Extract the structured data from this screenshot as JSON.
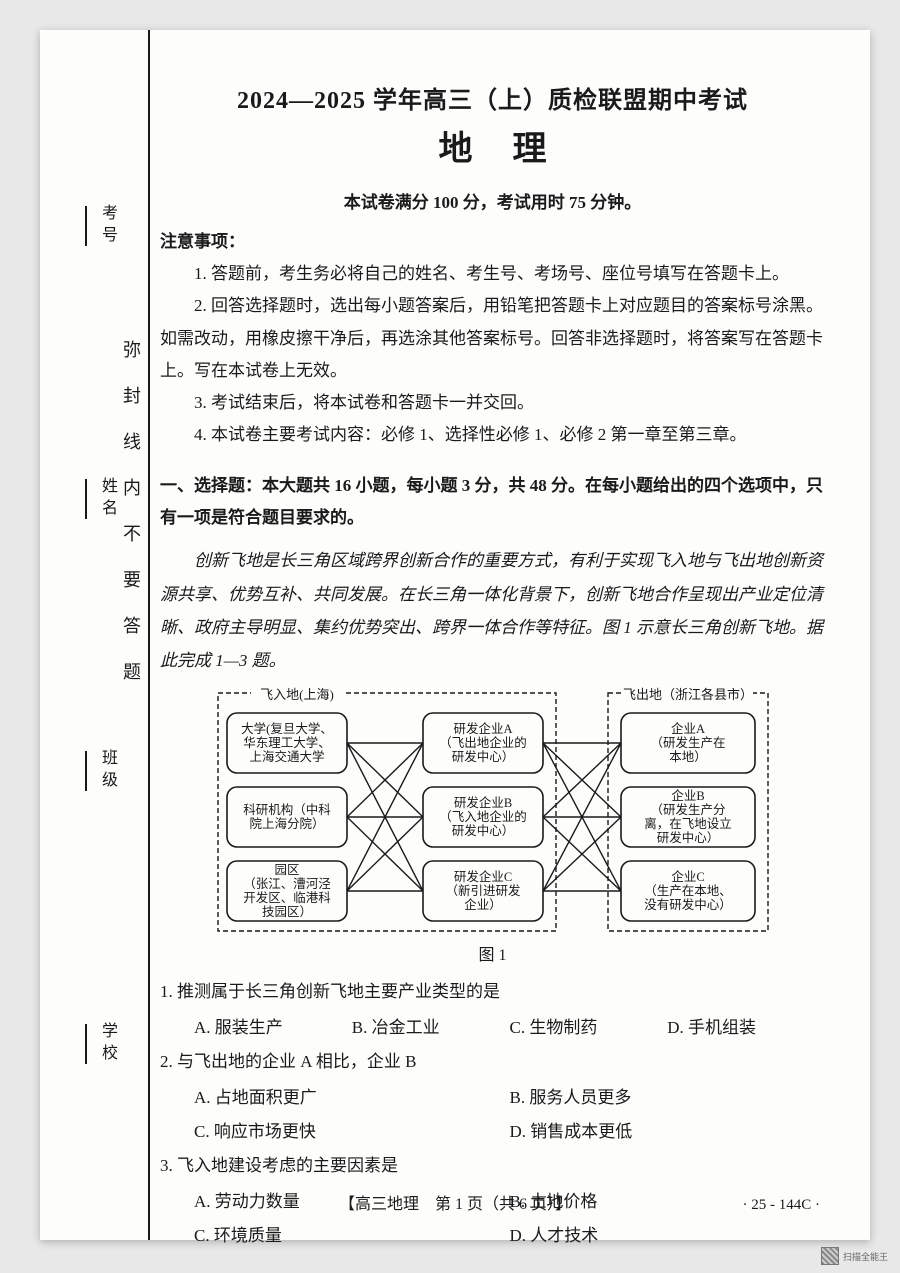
{
  "header": {
    "title": "2024—2025 学年高三（上）质检联盟期中考试",
    "subject": "地理",
    "meta": "本试卷满分 100 分，考试用时 75 分钟。"
  },
  "binding": {
    "labels": [
      "考号",
      "姓名",
      "班级",
      "学校"
    ],
    "warn": "弥封线内不要答题"
  },
  "notice": {
    "head": "注意事项：",
    "items": [
      "1. 答题前，考生务必将自己的姓名、考生号、考场号、座位号填写在答题卡上。",
      "2. 回答选择题时，选出每小题答案后，用铅笔把答题卡上对应题目的答案标号涂黑。如需改动，用橡皮擦干净后，再选涂其他答案标号。回答非选择题时，将答案写在答题卡上。写在本试卷上无效。",
      "3. 考试结束后，将本试卷和答题卡一并交回。",
      "4. 本试卷主要考试内容：必修 1、选择性必修 1、必修 2 第一章至第三章。"
    ]
  },
  "section1": {
    "head": "一、选择题：本大题共 16 小题，每小题 3 分，共 48 分。在每小题给出的四个选项中，只有一项是符合题目要求的。",
    "passage": "创新飞地是长三角区域跨界创新合作的重要方式，有利于实现飞入地与飞出地创新资源共享、优势互补、共同发展。在长三角一体化背景下，创新飞地合作呈现出产业定位清晰、政府主导明显、集约优势突出、跨界一体合作等特征。图 1 示意长三角创新飞地。据此完成 1—3 题。"
  },
  "diagram": {
    "caption": "图 1",
    "group_left": {
      "label": "飞入地(上海)"
    },
    "group_right": {
      "label": "飞出地（浙江各县市）"
    },
    "left_nodes": [
      {
        "id": "L1",
        "lines": [
          "大学(复旦大学、",
          "华东理工大学、",
          "上海交通大学"
        ]
      },
      {
        "id": "L2",
        "lines": [
          "科研机构（中科",
          "院上海分院）"
        ]
      },
      {
        "id": "L3",
        "lines": [
          "园区",
          "（张江、漕河泾",
          "开发区、临港科",
          "技园区）"
        ]
      }
    ],
    "mid_nodes": [
      {
        "id": "M1",
        "lines": [
          "研发企业A",
          "（飞出地企业的",
          "研发中心）"
        ]
      },
      {
        "id": "M2",
        "lines": [
          "研发企业B",
          "（飞入地企业的",
          "研发中心）"
        ]
      },
      {
        "id": "M3",
        "lines": [
          "研发企业C",
          "（新引进研发",
          "企业）"
        ]
      }
    ],
    "right_nodes": [
      {
        "id": "R1",
        "lines": [
          "企业A",
          "（研发生产在",
          "本地）"
        ]
      },
      {
        "id": "R2",
        "lines": [
          "企业B",
          "（研发生产分",
          "离，在飞地设立",
          "研发中心）"
        ]
      },
      {
        "id": "R3",
        "lines": [
          "企业C",
          "（生产在本地、",
          "没有研发中心）"
        ]
      }
    ],
    "edges_left_mid": [
      [
        "L1",
        "M1"
      ],
      [
        "L1",
        "M2"
      ],
      [
        "L1",
        "M3"
      ],
      [
        "L2",
        "M1"
      ],
      [
        "L2",
        "M2"
      ],
      [
        "L2",
        "M3"
      ],
      [
        "L3",
        "M1"
      ],
      [
        "L3",
        "M2"
      ],
      [
        "L3",
        "M3"
      ]
    ],
    "edges_mid_right": [
      [
        "M1",
        "R1"
      ],
      [
        "M1",
        "R2"
      ],
      [
        "M1",
        "R3"
      ],
      [
        "M2",
        "R1"
      ],
      [
        "M2",
        "R2"
      ],
      [
        "M2",
        "R3"
      ],
      [
        "M3",
        "R1"
      ],
      [
        "M3",
        "R2"
      ],
      [
        "M3",
        "R3"
      ]
    ],
    "colors": {
      "stroke": "#1a1a1a",
      "bg": "#fdfdfc"
    }
  },
  "questions": [
    {
      "num": "1.",
      "stem": "推测属于长三角创新飞地主要产业类型的是",
      "layout": "4",
      "opts": [
        "A. 服装生产",
        "B. 冶金工业",
        "C. 生物制药",
        "D. 手机组装"
      ]
    },
    {
      "num": "2.",
      "stem": "与飞出地的企业 A 相比，企业 B",
      "layout": "2",
      "opts": [
        "A. 占地面积更广",
        "B. 服务人员更多",
        "C. 响应市场更快",
        "D. 销售成本更低"
      ]
    },
    {
      "num": "3.",
      "stem": "飞入地建设考虑的主要因素是",
      "layout": "2",
      "opts": [
        "A. 劳动力数量",
        "B. 土地价格",
        "C. 环境质量",
        "D. 人才技术"
      ]
    }
  ],
  "footer": {
    "center": "【高三地理　第 1 页（共 6 页）】",
    "code": "· 25 - 144C ·",
    "scan": "扫描全能王"
  }
}
